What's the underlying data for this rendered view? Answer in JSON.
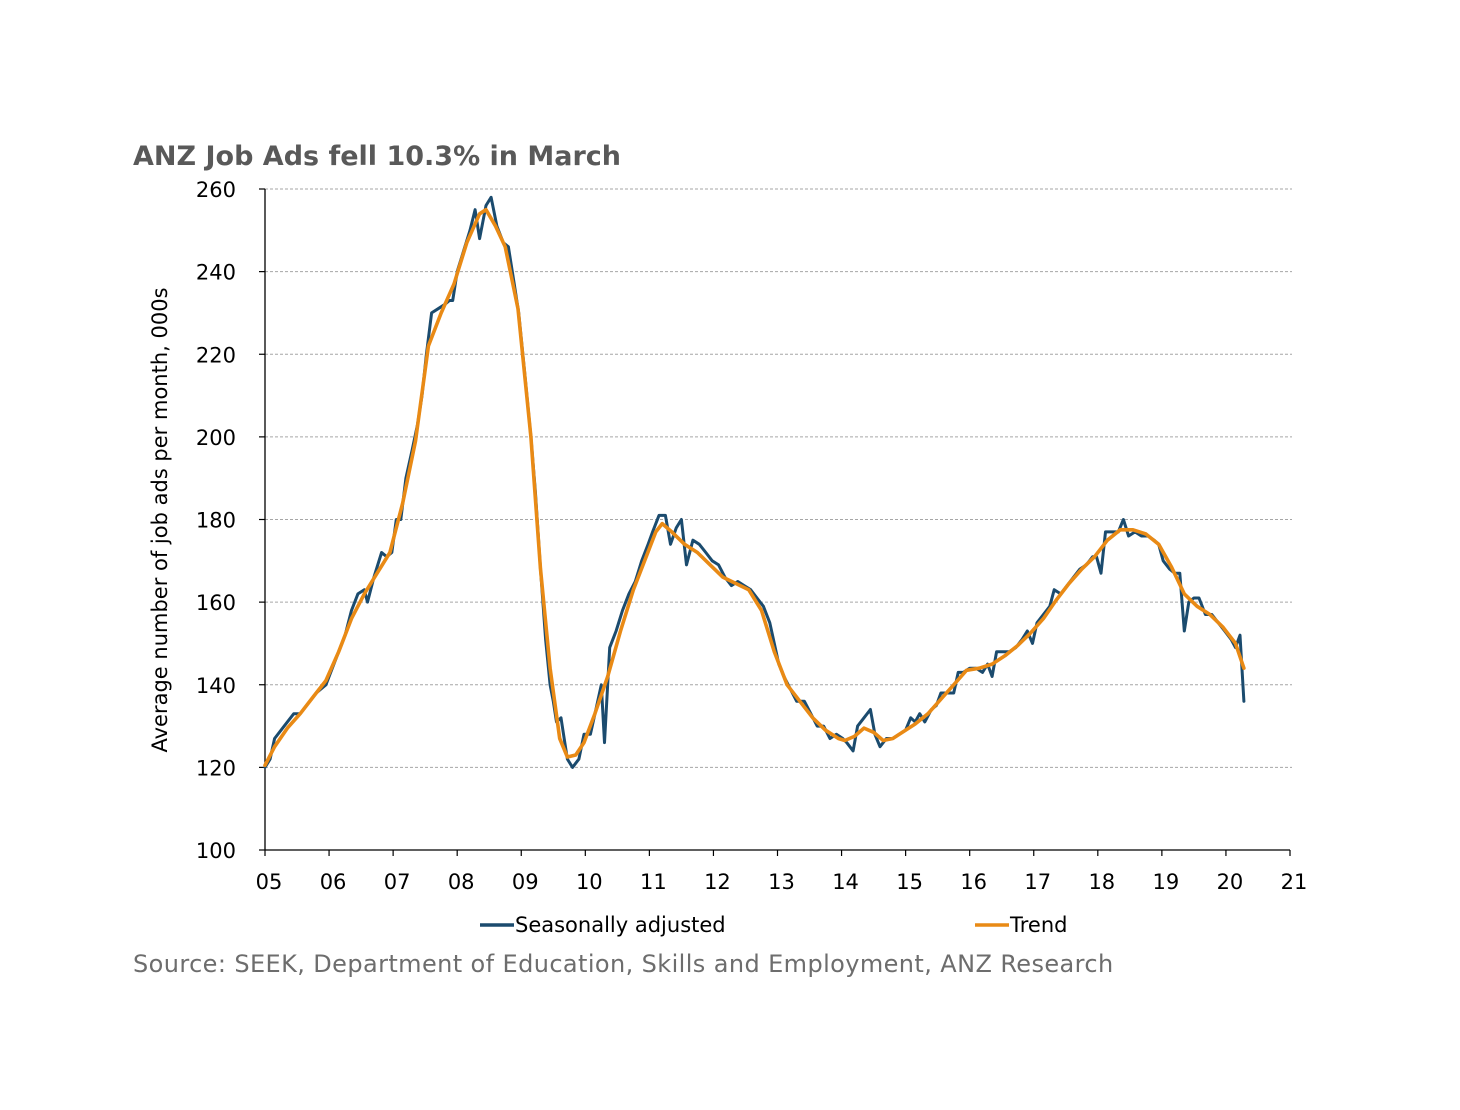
{
  "chart_data": {
    "type": "line",
    "title": "ANZ Job Ads fell 10.3% in March",
    "ylabel": "Average number of job ads per month, 000s",
    "xlabel": "",
    "ylim": [
      100,
      260
    ],
    "yticks": [
      100,
      120,
      140,
      160,
      180,
      200,
      220,
      240,
      260
    ],
    "xlim": [
      2005,
      2021
    ],
    "xtick_labels": [
      "05",
      "06",
      "07",
      "08",
      "09",
      "10",
      "11",
      "12",
      "13",
      "14",
      "15",
      "16",
      "17",
      "18",
      "19",
      "20",
      "21"
    ],
    "grid": "horizontal dashed",
    "legend_position": "bottom",
    "source": "Source: SEEK, Department of Education, Skills and Employment, ANZ Research",
    "series": [
      {
        "name": "Seasonally adjusted",
        "color": "#1b4b6e",
        "points": [
          [
            2005.0,
            120
          ],
          [
            2005.08,
            122
          ],
          [
            2005.15,
            127
          ],
          [
            2005.3,
            130
          ],
          [
            2005.45,
            133
          ],
          [
            2005.55,
            133
          ],
          [
            2005.7,
            136
          ],
          [
            2005.8,
            138
          ],
          [
            2005.95,
            140
          ],
          [
            2006.05,
            144
          ],
          [
            2006.15,
            148
          ],
          [
            2006.25,
            152
          ],
          [
            2006.35,
            158
          ],
          [
            2006.45,
            162
          ],
          [
            2006.55,
            163
          ],
          [
            2006.6,
            160
          ],
          [
            2006.7,
            166
          ],
          [
            2006.82,
            172
          ],
          [
            2006.9,
            171
          ],
          [
            2006.98,
            172
          ],
          [
            2007.05,
            180
          ],
          [
            2007.12,
            180
          ],
          [
            2007.2,
            190
          ],
          [
            2007.3,
            197
          ],
          [
            2007.38,
            203
          ],
          [
            2007.45,
            210
          ],
          [
            2007.52,
            220
          ],
          [
            2007.6,
            230
          ],
          [
            2007.7,
            231
          ],
          [
            2007.8,
            232
          ],
          [
            2007.88,
            233
          ],
          [
            2007.93,
            233
          ],
          [
            2008.0,
            240
          ],
          [
            2008.1,
            245
          ],
          [
            2008.2,
            250
          ],
          [
            2008.28,
            255
          ],
          [
            2008.35,
            248
          ],
          [
            2008.45,
            256
          ],
          [
            2008.53,
            258
          ],
          [
            2008.62,
            251
          ],
          [
            2008.72,
            247
          ],
          [
            2008.8,
            246
          ],
          [
            2008.88,
            238
          ],
          [
            2008.96,
            230
          ],
          [
            2009.05,
            216
          ],
          [
            2009.15,
            200
          ],
          [
            2009.22,
            187
          ],
          [
            2009.3,
            168
          ],
          [
            2009.38,
            151
          ],
          [
            2009.45,
            140
          ],
          [
            2009.5,
            136
          ],
          [
            2009.55,
            131
          ],
          [
            2009.62,
            132
          ],
          [
            2009.68,
            126
          ],
          [
            2009.72,
            122
          ],
          [
            2009.8,
            120
          ],
          [
            2009.9,
            122
          ],
          [
            2009.98,
            128
          ],
          [
            2010.08,
            128
          ],
          [
            2010.18,
            135
          ],
          [
            2010.25,
            140
          ],
          [
            2010.3,
            126
          ],
          [
            2010.38,
            149
          ],
          [
            2010.48,
            153
          ],
          [
            2010.58,
            158
          ],
          [
            2010.68,
            162
          ],
          [
            2010.78,
            165
          ],
          [
            2010.88,
            170
          ],
          [
            2010.98,
            174
          ],
          [
            2011.05,
            177
          ],
          [
            2011.15,
            181
          ],
          [
            2011.25,
            181
          ],
          [
            2011.33,
            174
          ],
          [
            2011.42,
            178
          ],
          [
            2011.5,
            180
          ],
          [
            2011.58,
            169
          ],
          [
            2011.68,
            175
          ],
          [
            2011.78,
            174
          ],
          [
            2011.88,
            172
          ],
          [
            2011.98,
            170
          ],
          [
            2012.08,
            169
          ],
          [
            2012.18,
            166
          ],
          [
            2012.28,
            164
          ],
          [
            2012.38,
            165
          ],
          [
            2012.48,
            164
          ],
          [
            2012.58,
            163
          ],
          [
            2012.68,
            161
          ],
          [
            2012.78,
            159
          ],
          [
            2012.88,
            155
          ],
          [
            2012.95,
            150
          ],
          [
            2013.02,
            145
          ],
          [
            2013.1,
            142
          ],
          [
            2013.2,
            139
          ],
          [
            2013.3,
            136
          ],
          [
            2013.42,
            136
          ],
          [
            2013.52,
            133
          ],
          [
            2013.62,
            130
          ],
          [
            2013.72,
            130
          ],
          [
            2013.82,
            127
          ],
          [
            2013.92,
            128
          ],
          [
            2014.02,
            127
          ],
          [
            2014.08,
            126
          ],
          [
            2014.18,
            124
          ],
          [
            2014.25,
            130
          ],
          [
            2014.35,
            132
          ],
          [
            2014.45,
            134
          ],
          [
            2014.52,
            128
          ],
          [
            2014.6,
            125
          ],
          [
            2014.7,
            127
          ],
          [
            2014.8,
            127
          ],
          [
            2014.9,
            128
          ],
          [
            2015.0,
            129
          ],
          [
            2015.08,
            132
          ],
          [
            2015.15,
            131
          ],
          [
            2015.22,
            133
          ],
          [
            2015.3,
            131
          ],
          [
            2015.4,
            134
          ],
          [
            2015.48,
            135
          ],
          [
            2015.55,
            138
          ],
          [
            2015.65,
            138
          ],
          [
            2015.75,
            138
          ],
          [
            2015.82,
            143
          ],
          [
            2015.9,
            143
          ],
          [
            2016.0,
            144
          ],
          [
            2016.1,
            144
          ],
          [
            2016.2,
            143
          ],
          [
            2016.28,
            145
          ],
          [
            2016.35,
            142
          ],
          [
            2016.42,
            148
          ],
          [
            2016.52,
            148
          ],
          [
            2016.62,
            148
          ],
          [
            2016.72,
            149
          ],
          [
            2016.82,
            151
          ],
          [
            2016.9,
            153
          ],
          [
            2016.98,
            150
          ],
          [
            2017.05,
            155
          ],
          [
            2017.15,
            157
          ],
          [
            2017.25,
            159
          ],
          [
            2017.32,
            163
          ],
          [
            2017.42,
            162
          ],
          [
            2017.52,
            164
          ],
          [
            2017.62,
            166
          ],
          [
            2017.72,
            168
          ],
          [
            2017.82,
            169
          ],
          [
            2017.92,
            171
          ],
          [
            2017.98,
            171
          ],
          [
            2018.05,
            167
          ],
          [
            2018.12,
            177
          ],
          [
            2018.22,
            177
          ],
          [
            2018.32,
            177
          ],
          [
            2018.4,
            180
          ],
          [
            2018.48,
            176
          ],
          [
            2018.58,
            177
          ],
          [
            2018.68,
            176
          ],
          [
            2018.78,
            176
          ],
          [
            2018.88,
            175
          ],
          [
            2018.95,
            174
          ],
          [
            2019.02,
            170
          ],
          [
            2019.12,
            168
          ],
          [
            2019.2,
            167
          ],
          [
            2019.28,
            167
          ],
          [
            2019.35,
            153
          ],
          [
            2019.42,
            160
          ],
          [
            2019.5,
            161
          ],
          [
            2019.58,
            161
          ],
          [
            2019.68,
            157
          ],
          [
            2019.78,
            157
          ],
          [
            2019.88,
            155
          ],
          [
            2019.98,
            153
          ],
          [
            2020.08,
            151
          ],
          [
            2020.15,
            149
          ],
          [
            2020.22,
            152
          ],
          [
            2020.28,
            136
          ]
        ]
      },
      {
        "name": "Trend",
        "color": "#e98a15",
        "points": [
          [
            2005.0,
            120.5
          ],
          [
            2005.15,
            125
          ],
          [
            2005.35,
            129.5
          ],
          [
            2005.55,
            133
          ],
          [
            2005.75,
            137
          ],
          [
            2005.95,
            141
          ],
          [
            2006.15,
            148
          ],
          [
            2006.35,
            156
          ],
          [
            2006.55,
            162
          ],
          [
            2006.75,
            167
          ],
          [
            2006.95,
            172
          ],
          [
            2007.15,
            184
          ],
          [
            2007.35,
            199
          ],
          [
            2007.55,
            222
          ],
          [
            2007.75,
            230
          ],
          [
            2007.95,
            237
          ],
          [
            2008.15,
            247
          ],
          [
            2008.35,
            254
          ],
          [
            2008.45,
            255
          ],
          [
            2008.6,
            251
          ],
          [
            2008.75,
            246
          ],
          [
            2008.95,
            231
          ],
          [
            2009.15,
            200
          ],
          [
            2009.3,
            168
          ],
          [
            2009.45,
            144
          ],
          [
            2009.6,
            127
          ],
          [
            2009.72,
            122.5
          ],
          [
            2009.85,
            123
          ],
          [
            2009.98,
            126
          ],
          [
            2010.15,
            133
          ],
          [
            2010.35,
            142
          ],
          [
            2010.55,
            153
          ],
          [
            2010.75,
            163
          ],
          [
            2010.95,
            171
          ],
          [
            2011.1,
            177
          ],
          [
            2011.2,
            179
          ],
          [
            2011.35,
            177
          ],
          [
            2011.55,
            174
          ],
          [
            2011.75,
            172
          ],
          [
            2011.95,
            169
          ],
          [
            2012.15,
            166
          ],
          [
            2012.35,
            164.5
          ],
          [
            2012.55,
            163
          ],
          [
            2012.75,
            158
          ],
          [
            2012.95,
            148
          ],
          [
            2013.15,
            140
          ],
          [
            2013.35,
            136
          ],
          [
            2013.55,
            132
          ],
          [
            2013.75,
            129
          ],
          [
            2013.95,
            127
          ],
          [
            2014.05,
            126.5
          ],
          [
            2014.2,
            127.5
          ],
          [
            2014.35,
            129.5
          ],
          [
            2014.5,
            128.5
          ],
          [
            2014.65,
            126.5
          ],
          [
            2014.8,
            127
          ],
          [
            2014.95,
            128.5
          ],
          [
            2015.15,
            130.5
          ],
          [
            2015.35,
            133
          ],
          [
            2015.55,
            136.5
          ],
          [
            2015.75,
            140
          ],
          [
            2015.95,
            143.5
          ],
          [
            2016.15,
            144
          ],
          [
            2016.35,
            145
          ],
          [
            2016.55,
            147
          ],
          [
            2016.75,
            149.5
          ],
          [
            2016.95,
            152.5
          ],
          [
            2017.15,
            156
          ],
          [
            2017.35,
            160.5
          ],
          [
            2017.55,
            164.5
          ],
          [
            2017.75,
            168
          ],
          [
            2017.95,
            171
          ],
          [
            2018.15,
            175
          ],
          [
            2018.35,
            177.5
          ],
          [
            2018.55,
            177.5
          ],
          [
            2018.75,
            176.5
          ],
          [
            2018.95,
            174
          ],
          [
            2019.15,
            168.5
          ],
          [
            2019.35,
            162
          ],
          [
            2019.55,
            159
          ],
          [
            2019.75,
            157
          ],
          [
            2019.95,
            154
          ],
          [
            2020.15,
            150
          ],
          [
            2020.28,
            144
          ]
        ]
      }
    ]
  }
}
